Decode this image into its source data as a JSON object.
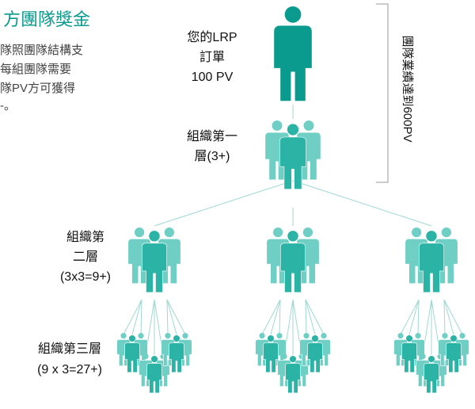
{
  "header": {
    "title": "方團隊獎金"
  },
  "intro": [
    "隊照團隊結構支",
    "每組團隊需要",
    "隊PV方可獲得",
    "-。"
  ],
  "top": {
    "label": [
      "您的LRP",
      "訂單",
      "100 PV"
    ]
  },
  "level1": {
    "label": [
      "組織第一",
      "層(3+)"
    ]
  },
  "level2": {
    "label": [
      "組織第",
      "二層",
      "(3x3=9+)"
    ]
  },
  "level3": {
    "label": [
      "組織第三層",
      "(9 x 3=27+)"
    ]
  },
  "bracket_label": "團隊業績達到600PV"
}
